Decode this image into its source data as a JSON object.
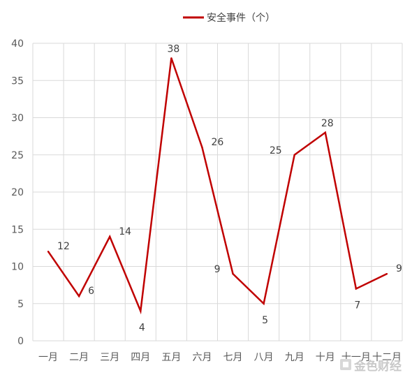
{
  "chart_data": {
    "type": "line",
    "title": "",
    "xlabel": "",
    "ylabel": "",
    "categories": [
      "一月",
      "二月",
      "三月",
      "四月",
      "五月",
      "六月",
      "七月",
      "八月",
      "九月",
      "十月",
      "十一月",
      "十二月"
    ],
    "series": [
      {
        "name": "安全事件（个）",
        "values": [
          12,
          6,
          14,
          4,
          38,
          26,
          9,
          5,
          25,
          28,
          7,
          9
        ],
        "color": "#c00000"
      }
    ],
    "ylim": [
      0,
      40
    ],
    "yticks": [
      0,
      5,
      10,
      15,
      20,
      25,
      30,
      35,
      40
    ],
    "grid": true,
    "legend_position": "top-center",
    "data_label_placement": [
      "right",
      "right",
      "right",
      "below",
      "above",
      "right",
      "left",
      "below",
      "left",
      "above",
      "below",
      "right"
    ]
  },
  "watermark": {
    "text": "金色财经"
  },
  "colors": {
    "grid": "#d9d9d9",
    "axis_text": "#595959",
    "line": "#c00000",
    "watermark": "#c9c9c9"
  }
}
